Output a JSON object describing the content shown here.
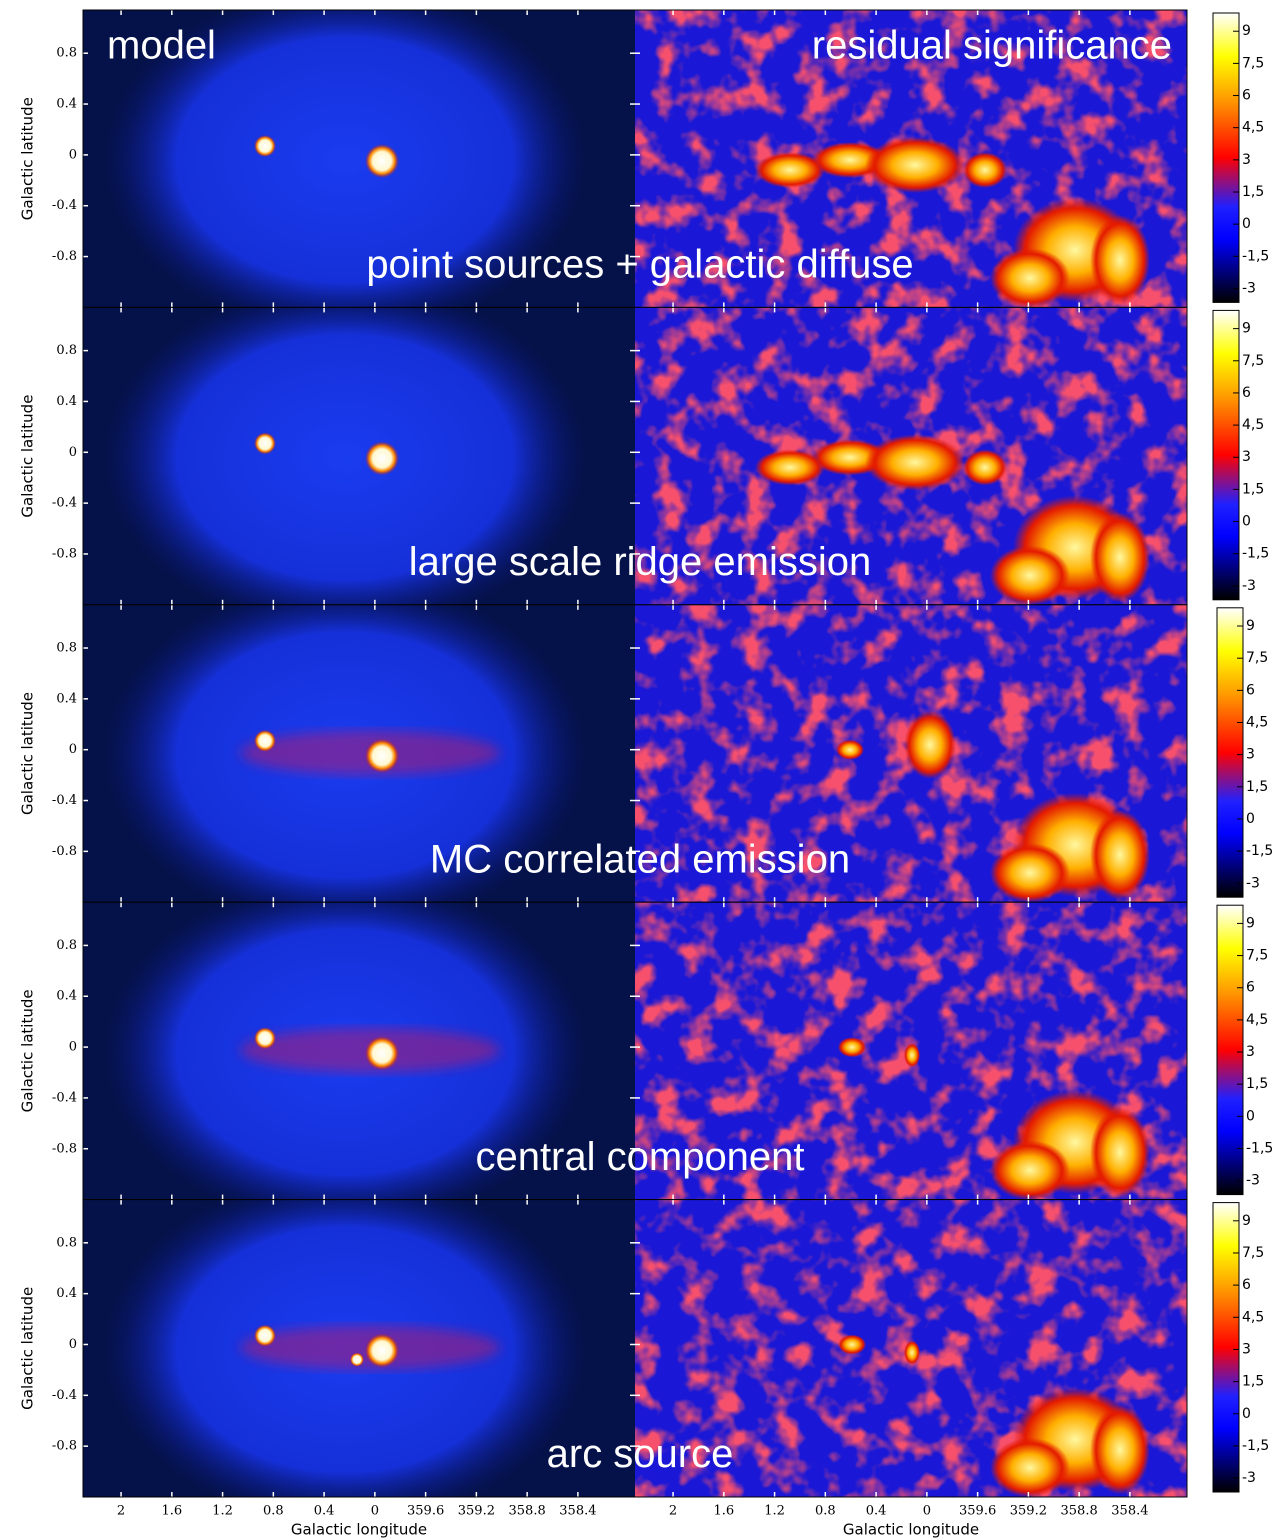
{
  "figure": {
    "x_label": "Galactic longitude",
    "y_label": "Galactic latitude",
    "left_title": "model",
    "right_title": "residual significance",
    "panels": [
      "point sources + galactic diffuse",
      "large scale ridge emission",
      "MC correlated emission",
      "central component",
      "arc source"
    ],
    "xlim": [
      2.3,
      357.95
    ],
    "xticks": [
      2,
      1.6,
      1.2,
      0.8,
      0.4,
      0,
      359.6,
      359.2,
      358.8,
      358.4
    ],
    "ylim": [
      -1.2,
      1.14
    ],
    "yticks": [
      0.8,
      0.4,
      0,
      -0.4,
      -0.8
    ],
    "colorbar": {
      "lim": [
        -3.65,
        9.85
      ],
      "ticks": [
        9,
        {
          "value": 7.5,
          "label": "7,5"
        },
        6,
        {
          "value": 4.5,
          "label": "4,5"
        },
        3,
        {
          "value": 1.5,
          "label": "1,5"
        },
        0,
        {
          "value": -1.5,
          "label": "-1,5"
        },
        -3
      ]
    }
  }
}
